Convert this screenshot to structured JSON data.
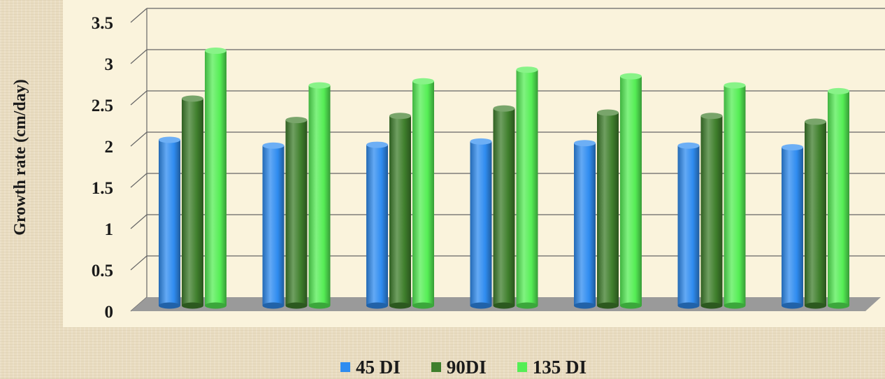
{
  "chart_data": {
    "type": "bar",
    "categories": [
      "",
      "",
      "",
      "",
      "",
      "",
      ""
    ],
    "series": [
      {
        "name": "45 DI",
        "color": "#2f8cf0",
        "values": [
          2.0,
          1.93,
          1.94,
          1.98,
          1.96,
          1.93,
          1.91
        ]
      },
      {
        "name": "90DI",
        "color": "#3f7f2c",
        "values": [
          2.5,
          2.24,
          2.29,
          2.38,
          2.33,
          2.29,
          2.22
        ]
      },
      {
        "name": "135 DI",
        "color": "#55ee55",
        "values": [
          3.08,
          2.66,
          2.71,
          2.85,
          2.77,
          2.66,
          2.59
        ]
      }
    ],
    "ylabel": "Growth rate (cm/day)",
    "ylim": [
      0,
      3.5
    ],
    "yticks": [
      "0",
      "0.5",
      "1",
      "1.5",
      "2",
      "2.5",
      "3",
      "3.5"
    ],
    "grid": true,
    "legend_position": "bottom"
  },
  "colors": {
    "plot_background": "#faf3dc",
    "floor": "#9a9a9a",
    "grid": "#666666"
  }
}
